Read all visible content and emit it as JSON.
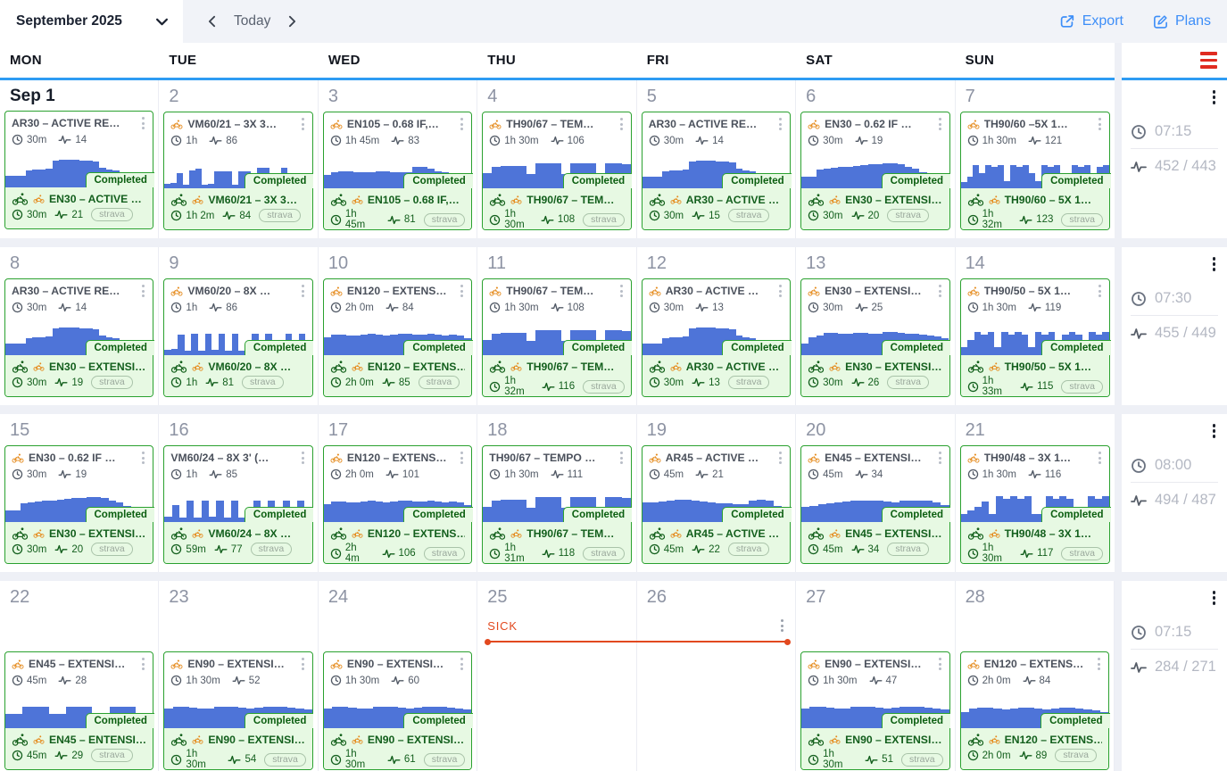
{
  "header": {
    "month_label": "September 2025",
    "today_label": "Today",
    "export_label": "Export",
    "plans_label": "Plans"
  },
  "day_headers": [
    "MON",
    "TUE",
    "WED",
    "THU",
    "FRI",
    "SAT",
    "SUN"
  ],
  "labels": {
    "completed": "Completed",
    "strava": "strava"
  },
  "colors": {
    "accent_blue": "#2e9cf3",
    "link_blue": "#3d8ef8",
    "chart_blue": "#4e74d8",
    "card_green_border": "#2aa12f",
    "green_text": "#135f1d",
    "green_bg": "#e7f9e3",
    "sick_orange": "#e2491f",
    "hamburger_red": "#e02b20",
    "day_number_gray": "#8d93a3"
  },
  "weeks": [
    {
      "summary": {
        "time": "07:15",
        "load": "452 / 443"
      },
      "days": [
        {
          "date": "Sep 1",
          "big": true,
          "card": {
            "profile": "ar30",
            "planned": {
              "bike": false,
              "title": "AR30 – ACTIVE RE…",
              "time": "30m",
              "load": "14"
            },
            "completed": {
              "title": "EN30 – ACTIVE …",
              "time": "30m",
              "load": "21"
            }
          }
        },
        {
          "date": "2",
          "card": {
            "profile": "vm60_21",
            "planned": {
              "bike": true,
              "title": "VM60/21 – 3X 3…",
              "time": "1h",
              "load": "86"
            },
            "completed": {
              "title": "VM60/21 – 3X 3…",
              "time": "1h 2m",
              "load": "84"
            }
          }
        },
        {
          "date": "3",
          "card": {
            "profile": "en105",
            "planned": {
              "bike": true,
              "title": "EN105 – 0.68 IF,…",
              "time": "1h 45m",
              "load": "83"
            },
            "completed": {
              "title": "EN105 – 0.68 IF,…",
              "time": "1h 45m",
              "load": "81"
            }
          }
        },
        {
          "date": "4",
          "card": {
            "profile": "th90_67",
            "planned": {
              "bike": true,
              "title": "TH90/67 – TEM…",
              "time": "1h 30m",
              "load": "106"
            },
            "completed": {
              "title": "TH90/67 – TEM…",
              "time": "1h 30m",
              "load": "108"
            }
          }
        },
        {
          "date": "5",
          "card": {
            "profile": "ar30",
            "planned": {
              "bike": false,
              "title": "AR30 – ACTIVE RE…",
              "time": "30m",
              "load": "14"
            },
            "completed": {
              "title": "AR30 – ACTIVE …",
              "time": "30m",
              "load": "15"
            }
          }
        },
        {
          "date": "6",
          "card": {
            "profile": "en30_hump",
            "planned": {
              "bike": true,
              "title": "EN30 – 0.62 IF …",
              "time": "30m",
              "load": "19"
            },
            "completed": {
              "title": "EN30 – EXTENSI…",
              "time": "30m",
              "load": "20"
            }
          }
        },
        {
          "date": "7",
          "card": {
            "profile": "th90_60",
            "planned": {
              "bike": true,
              "title": "TH90/60 –5X 1…",
              "time": "1h 30m",
              "load": "121"
            },
            "completed": {
              "title": "TH90/60 – 5X 1…",
              "time": "1h 32m",
              "load": "123"
            }
          }
        }
      ]
    },
    {
      "summary": {
        "time": "07:30",
        "load": "455 / 449"
      },
      "days": [
        {
          "date": "8",
          "card": {
            "profile": "ar30",
            "planned": {
              "bike": false,
              "title": "AR30 – ACTIVE RE…",
              "time": "30m",
              "load": "14"
            },
            "completed": {
              "title": "EN30 – EXTENSI…",
              "time": "30m",
              "load": "19"
            }
          }
        },
        {
          "date": "9",
          "card": {
            "profile": "vm60_20",
            "planned": {
              "bike": true,
              "title": "VM60/20 – 8X …",
              "time": "1h",
              "load": "86"
            },
            "completed": {
              "title": "VM60/20 – 8X …",
              "time": "1h",
              "load": "81"
            }
          }
        },
        {
          "date": "10",
          "card": {
            "profile": "en120",
            "planned": {
              "bike": true,
              "title": "EN120 – EXTENS…",
              "time": "2h 0m",
              "load": "84"
            },
            "completed": {
              "title": "EN120 – EXTENS…",
              "time": "2h 0m",
              "load": "85"
            }
          }
        },
        {
          "date": "11",
          "card": {
            "profile": "th90_67",
            "planned": {
              "bike": true,
              "title": "TH90/67 – TEM…",
              "time": "1h 30m",
              "load": "108"
            },
            "completed": {
              "title": "TH90/67 – TEM…",
              "time": "1h 32m",
              "load": "116"
            }
          }
        },
        {
          "date": "12",
          "card": {
            "profile": "ar30",
            "planned": {
              "bike": true,
              "title": "AR30 – ACTIVE …",
              "time": "30m",
              "load": "13"
            },
            "completed": {
              "title": "AR30 – ACTIVE …",
              "time": "30m",
              "load": "13"
            }
          }
        },
        {
          "date": "13",
          "card": {
            "profile": "en30_ext",
            "planned": {
              "bike": true,
              "title": "EN30 – EXTENSI…",
              "time": "30m",
              "load": "25"
            },
            "completed": {
              "title": "EN30 – EXTENSI…",
              "time": "30m",
              "load": "26"
            }
          }
        },
        {
          "date": "14",
          "card": {
            "profile": "th90_50",
            "planned": {
              "bike": true,
              "title": "TH90/50 – 5X 1…",
              "time": "1h 30m",
              "load": "119"
            },
            "completed": {
              "title": "TH90/50 – 5X 1…",
              "time": "1h 33m",
              "load": "115"
            }
          }
        }
      ]
    },
    {
      "summary": {
        "time": "08:00",
        "load": "494 / 487"
      },
      "days": [
        {
          "date": "15",
          "card": {
            "profile": "en30_hump",
            "planned": {
              "bike": true,
              "title": "EN30 – 0.62 IF …",
              "time": "30m",
              "load": "19"
            },
            "completed": {
              "title": "EN30 – EXTENSI…",
              "time": "30m",
              "load": "20"
            }
          }
        },
        {
          "date": "16",
          "card": {
            "profile": "vm60_24",
            "planned": {
              "bike": false,
              "title": "VM60/24 – 8X 3' (…",
              "time": "1h",
              "load": "85"
            },
            "completed": {
              "title": "VM60/24 – 8X …",
              "time": "59m",
              "load": "77"
            }
          }
        },
        {
          "date": "17",
          "card": {
            "profile": "en120",
            "planned": {
              "bike": true,
              "title": "EN120 – EXTENS…",
              "time": "2h 0m",
              "load": "101"
            },
            "completed": {
              "title": "EN120 – EXTENS…",
              "time": "2h 4m",
              "load": "106"
            }
          }
        },
        {
          "date": "18",
          "card": {
            "profile": "th90_67",
            "planned": {
              "bike": false,
              "title": "TH90/67 – TEMPO …",
              "time": "1h 30m",
              "load": "111"
            },
            "completed": {
              "title": "TH90/67 – TEM…",
              "time": "1h 31m",
              "load": "118"
            }
          }
        },
        {
          "date": "19",
          "card": {
            "profile": "ar45",
            "planned": {
              "bike": true,
              "title": "AR45 – ACTIVE …",
              "time": "45m",
              "load": "21"
            },
            "completed": {
              "title": "AR45 – ACTIVE …",
              "time": "45m",
              "load": "22"
            }
          }
        },
        {
          "date": "20",
          "card": {
            "profile": "en45_20",
            "planned": {
              "bike": true,
              "title": "EN45 – EXTENSI…",
              "time": "45m",
              "load": "34"
            },
            "completed": {
              "title": "EN45 – EXTENSI…",
              "time": "45m",
              "load": "34"
            }
          }
        },
        {
          "date": "21",
          "card": {
            "profile": "th90_48",
            "planned": {
              "bike": true,
              "title": "TH90/48 – 3X 1…",
              "time": "1h 30m",
              "load": "116"
            },
            "completed": {
              "title": "TH90/48 – 3X 1…",
              "time": "1h 30m",
              "load": "117"
            }
          }
        }
      ]
    },
    {
      "summary": {
        "time": "07:15",
        "load": "284 / 271"
      },
      "annotation": {
        "label": "SICK"
      },
      "days": [
        {
          "date": "22",
          "card": {
            "profile": "en45_22",
            "planned": {
              "bike": true,
              "title": "EN45 – EXTENSI…",
              "time": "45m",
              "load": "28"
            },
            "completed": {
              "title": "EN45 – ENTENSI…",
              "time": "45m",
              "load": "29"
            }
          }
        },
        {
          "date": "23",
          "card": {
            "profile": "en90",
            "planned": {
              "bike": true,
              "title": "EN90 – EXTENSI…",
              "time": "1h 30m",
              "load": "52"
            },
            "completed": {
              "title": "EN90 – EXTENSI…",
              "time": "1h 30m",
              "load": "54"
            }
          }
        },
        {
          "date": "24",
          "card": {
            "profile": "en90",
            "planned": {
              "bike": true,
              "title": "EN90 – EXTENSI…",
              "time": "1h 30m",
              "load": "60"
            },
            "completed": {
              "title": "EN90 – EXTENSI…",
              "time": "1h 30m",
              "load": "61"
            }
          }
        },
        {
          "date": "25",
          "card": null
        },
        {
          "date": "26",
          "card": null
        },
        {
          "date": "27",
          "card": {
            "profile": "en90",
            "planned": {
              "bike": true,
              "title": "EN90 – EXTENSI…",
              "time": "1h 30m",
              "load": "47"
            },
            "completed": {
              "title": "EN90 – EXTENSI…",
              "time": "1h 30m",
              "load": "51"
            }
          }
        },
        {
          "date": "28",
          "card": {
            "profile": "en120_28",
            "planned": {
              "bike": true,
              "title": "EN120 – EXTENS…",
              "time": "2h 0m",
              "load": "84"
            },
            "completed": {
              "title": "EN120 – EXTENS…",
              "time": "2h 0m",
              "load": "89"
            }
          }
        }
      ]
    }
  ],
  "chart_profiles": {
    "ar30": [
      30,
      30,
      30,
      46,
      48,
      48,
      50,
      72,
      74,
      74,
      74,
      72,
      72,
      70,
      52,
      48,
      46,
      30,
      30,
      34,
      30,
      30
    ],
    "en30_hump": [
      32,
      32,
      50,
      52,
      54,
      56,
      58,
      60,
      62,
      64,
      64,
      66,
      66,
      64,
      58,
      52,
      44,
      38,
      34,
      32
    ],
    "en30_ext": [
      30,
      48,
      52,
      60,
      60,
      58,
      58,
      60,
      60,
      58,
      56,
      62,
      62,
      60,
      58,
      56,
      54,
      52,
      50,
      46
    ],
    "vm60_21": [
      12,
      14,
      40,
      10,
      48,
      52,
      10,
      12,
      45,
      45,
      45,
      10,
      46,
      46,
      10,
      54,
      54,
      10,
      12,
      54,
      10,
      40,
      40,
      12
    ],
    "vm60_20": [
      14,
      16,
      55,
      12,
      58,
      12,
      58,
      14,
      58,
      12,
      58,
      12,
      14,
      58,
      12,
      58,
      12,
      14,
      58,
      12,
      58,
      14
    ],
    "vm60_24": [
      14,
      45,
      12,
      58,
      12,
      58,
      14,
      58,
      12,
      58,
      12,
      14,
      58,
      12,
      58,
      12,
      58,
      14,
      58,
      12
    ],
    "en105": [
      36,
      44,
      46,
      46,
      44,
      42,
      42,
      46,
      46,
      44,
      42,
      44,
      56,
      56,
      52,
      46,
      42,
      38,
      34,
      30
    ],
    "en120": [
      48,
      54,
      54,
      52,
      52,
      54,
      56,
      54,
      52,
      54,
      56,
      56,
      54,
      54,
      56,
      54,
      52,
      54,
      52,
      46
    ],
    "en120_28": [
      44,
      52,
      54,
      54,
      52,
      50,
      52,
      54,
      54,
      52,
      50,
      52,
      54,
      54,
      52,
      50,
      48,
      44
    ],
    "th90_67": [
      40,
      58,
      60,
      60,
      60,
      38,
      66,
      66,
      66,
      38,
      66,
      66,
      66,
      38,
      66,
      66,
      64
    ],
    "th90_60": [
      16,
      30,
      62,
      40,
      62,
      58,
      62,
      20,
      62,
      58,
      62,
      40,
      20,
      62,
      58,
      62,
      20,
      40,
      62,
      58,
      62,
      20,
      58,
      62
    ],
    "th90_50": [
      22,
      40,
      62,
      55,
      62,
      22,
      62,
      55,
      62,
      55,
      22,
      62,
      55,
      62,
      22,
      55,
      62,
      55,
      22,
      62,
      55,
      62
    ],
    "th90_48": [
      22,
      30,
      40,
      55,
      22,
      68,
      62,
      68,
      62,
      68,
      22,
      22,
      68,
      62,
      68,
      62,
      22,
      22,
      68,
      62,
      68
    ],
    "ar45": [
      52,
      52,
      55,
      58,
      60,
      60,
      58,
      55,
      52,
      50,
      50,
      48,
      48,
      58,
      60,
      58,
      44,
      38
    ],
    "en45_20": [
      40,
      44,
      48,
      50,
      52,
      54,
      56,
      58,
      58,
      56,
      54,
      52,
      56,
      58,
      58,
      56,
      52,
      46
    ],
    "en45_22": [
      38,
      38,
      58,
      58,
      58,
      38,
      38,
      58,
      58,
      58,
      38,
      38,
      56,
      56,
      56,
      40,
      38
    ],
    "en90": [
      52,
      56,
      56,
      54,
      52,
      52,
      58,
      58,
      56,
      54,
      52,
      54,
      58,
      58,
      56,
      54,
      52,
      50
    ]
  }
}
